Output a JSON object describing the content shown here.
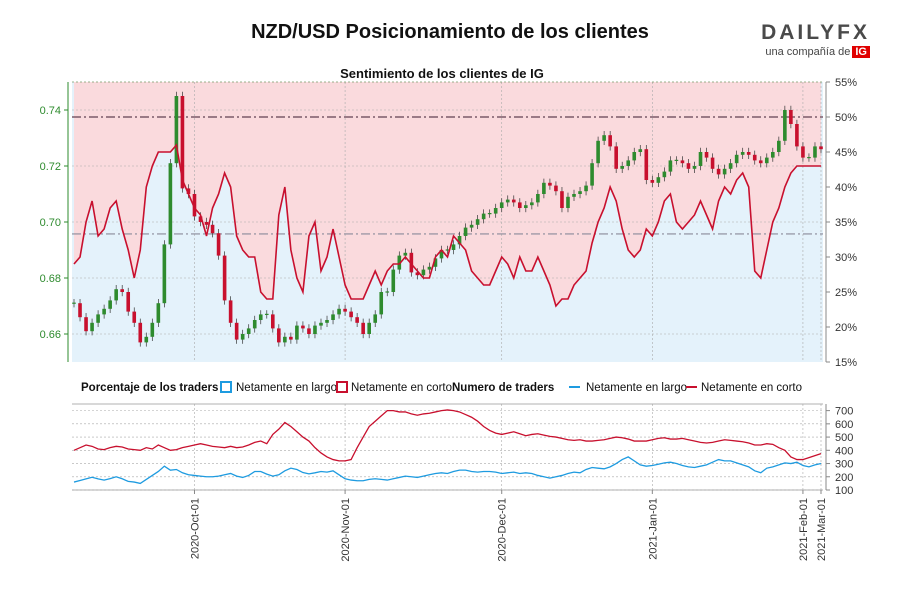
{
  "header": {
    "title": "NZD/USD Posicionamiento de los clientes",
    "logo_text": "DAILYFX",
    "logo_sub": "una compañía de",
    "logo_badge": "IG"
  },
  "colors": {
    "long": "#1e9be0",
    "short": "#c8102e",
    "candle_up": "#2e8b2e",
    "candle_down": "#c8102e",
    "shade_top": "#fadadd",
    "shade_bottom": "#e4f2fb",
    "axis_left": "#2e8b2e"
  },
  "chart_data": [
    {
      "type": "candlestick",
      "title": "Sentimiento de los clientes de IG",
      "y_left_range": [
        0.65,
        0.75
      ],
      "y_left_ticks": [
        "0.66",
        "0.68",
        "0.70",
        "0.72",
        "0.74"
      ],
      "y_right_range": [
        15,
        55
      ],
      "y_right_ticks": [
        "15%",
        "20%",
        "25%",
        "30%",
        "35%",
        "40%",
        "45%",
        "50%",
        "55%"
      ],
      "reference_lines_pct": [
        50,
        33.3
      ],
      "close": [
        0.671,
        0.666,
        0.661,
        0.664,
        0.667,
        0.669,
        0.672,
        0.676,
        0.675,
        0.668,
        0.664,
        0.657,
        0.659,
        0.664,
        0.671,
        0.692,
        0.721,
        0.745,
        0.712,
        0.71,
        0.702,
        0.7,
        0.699,
        0.696,
        0.688,
        0.672,
        0.664,
        0.658,
        0.66,
        0.662,
        0.665,
        0.667,
        0.667,
        0.662,
        0.657,
        0.659,
        0.658,
        0.663,
        0.662,
        0.66,
        0.663,
        0.664,
        0.665,
        0.667,
        0.669,
        0.668,
        0.666,
        0.664,
        0.66,
        0.664,
        0.667,
        0.675,
        0.675,
        0.683,
        0.688,
        0.689,
        0.682,
        0.681,
        0.683,
        0.684,
        0.687,
        0.69,
        0.69,
        0.692,
        0.695,
        0.698,
        0.699,
        0.701,
        0.703,
        0.703,
        0.705,
        0.707,
        0.708,
        0.707,
        0.705,
        0.706,
        0.707,
        0.71,
        0.714,
        0.713,
        0.711,
        0.705,
        0.709,
        0.71,
        0.711,
        0.713,
        0.721,
        0.729,
        0.731,
        0.727,
        0.719,
        0.72,
        0.722,
        0.725,
        0.726,
        0.715,
        0.714,
        0.716,
        0.718,
        0.722,
        0.722,
        0.721,
        0.719,
        0.72,
        0.725,
        0.723,
        0.719,
        0.717,
        0.719,
        0.721,
        0.724,
        0.725,
        0.724,
        0.722,
        0.721,
        0.723,
        0.725,
        0.729,
        0.74,
        0.735,
        0.727,
        0.723,
        0.723,
        0.727,
        0.726
      ],
      "short_pct": [
        29,
        30,
        35,
        38,
        33,
        34,
        37,
        38,
        34,
        31,
        27,
        31,
        40,
        43,
        45,
        45,
        45,
        46,
        41,
        39,
        37,
        36,
        33,
        37,
        39,
        42,
        40,
        33,
        31,
        30,
        30,
        25,
        24,
        24,
        36,
        40,
        31,
        27,
        25,
        33,
        35,
        28,
        30,
        34,
        30,
        26,
        24,
        24,
        24,
        26,
        28,
        26,
        28,
        29,
        29,
        30,
        29,
        28,
        27,
        27,
        30,
        31,
        30,
        33,
        32,
        31,
        28,
        27,
        26,
        26,
        28,
        30,
        29,
        27,
        30,
        28,
        28,
        30,
        28,
        26,
        23,
        24,
        24,
        26,
        27,
        28,
        32,
        35,
        37,
        40,
        38,
        34,
        31,
        30,
        31,
        34,
        33,
        35,
        38,
        39,
        35,
        34,
        35,
        36,
        38,
        36,
        34,
        38,
        40,
        39,
        41,
        42,
        40,
        28,
        27,
        31,
        35,
        37,
        40,
        42,
        43,
        43,
        43,
        43,
        43
      ],
      "long_pct": [
        71,
        70,
        65,
        62,
        67,
        66,
        63,
        62,
        66,
        69,
        73,
        69,
        60,
        57,
        55,
        55,
        55,
        54,
        59,
        61,
        63,
        64,
        67,
        63,
        61,
        58,
        60,
        67,
        69,
        70,
        70,
        75,
        76,
        76,
        64,
        60,
        69,
        73,
        75,
        67,
        65,
        72,
        70,
        66,
        70,
        74,
        76,
        76,
        76,
        74,
        72,
        74,
        72,
        71,
        71,
        70,
        71,
        72,
        73,
        73,
        70,
        69,
        70,
        67,
        68,
        69,
        72,
        73,
        74,
        74,
        72,
        70,
        71,
        73,
        70,
        72,
        72,
        70,
        72,
        74,
        77,
        76,
        76,
        74,
        73,
        72,
        68,
        65,
        63,
        60,
        62,
        66,
        69,
        70,
        69,
        66,
        67,
        65,
        62,
        61,
        65,
        66,
        65,
        64,
        62,
        64,
        66,
        62,
        60,
        61,
        59,
        58,
        60,
        72,
        73,
        69,
        65,
        63,
        60,
        58,
        57,
        57,
        57,
        57,
        57
      ]
    },
    {
      "type": "line",
      "y_range": [
        100,
        750
      ],
      "y_ticks": [
        "100",
        "200",
        "300",
        "400",
        "500",
        "600",
        "700"
      ],
      "x_ticks": [
        "2020-Oct-01",
        "2020-Nov-01",
        "2020-Dec-01",
        "2021-Jan-01",
        "2021-Feb-01",
        "2021-Mar-01"
      ],
      "series": [
        {
          "name": "Netamente en largo",
          "values": [
            160,
            172,
            184,
            196,
            184,
            175,
            186,
            200,
            185,
            165,
            160,
            150,
            180,
            210,
            240,
            280,
            250,
            255,
            230,
            215,
            210,
            205,
            200,
            200,
            205,
            215,
            225,
            205,
            195,
            210,
            240,
            240,
            220,
            205,
            215,
            245,
            265,
            255,
            232,
            222,
            230,
            240,
            235,
            245,
            215,
            185,
            175,
            170,
            170,
            180,
            185,
            180,
            175,
            185,
            195,
            205,
            200,
            195,
            205,
            215,
            225,
            230,
            225,
            240,
            250,
            250,
            240,
            235,
            240,
            240,
            235,
            225,
            230,
            235,
            225,
            230,
            225,
            210,
            200,
            190,
            200,
            210,
            225,
            235,
            230,
            255,
            270,
            265,
            260,
            275,
            300,
            330,
            350,
            320,
            290,
            280,
            285,
            295,
            305,
            310,
            300,
            285,
            275,
            270,
            280,
            290,
            310,
            330,
            320,
            320,
            305,
            290,
            275,
            245,
            230,
            265,
            275,
            290,
            305,
            300,
            310,
            285,
            275,
            290,
            300
          ]
        },
        {
          "name": "Netamente en corto",
          "values": [
            400,
            420,
            440,
            430,
            410,
            405,
            420,
            430,
            425,
            410,
            405,
            400,
            420,
            410,
            440,
            420,
            400,
            405,
            420,
            430,
            440,
            450,
            440,
            430,
            425,
            420,
            430,
            420,
            425,
            440,
            460,
            470,
            450,
            520,
            560,
            610,
            580,
            540,
            500,
            470,
            420,
            380,
            350,
            330,
            320,
            320,
            330,
            420,
            500,
            580,
            620,
            660,
            700,
            700,
            690,
            690,
            675,
            665,
            675,
            680,
            690,
            700,
            705,
            700,
            690,
            670,
            650,
            620,
            580,
            550,
            530,
            520,
            530,
            540,
            525,
            510,
            520,
            525,
            515,
            505,
            500,
            490,
            480,
            475,
            480,
            470,
            470,
            475,
            480,
            490,
            500,
            495,
            485,
            470,
            470,
            470,
            480,
            490,
            495,
            485,
            485,
            490,
            480,
            470,
            460,
            455,
            460,
            470,
            480,
            475,
            470,
            465,
            455,
            440,
            440,
            450,
            445,
            420,
            400,
            350,
            330,
            330,
            345,
            360,
            375
          ]
        }
      ]
    }
  ],
  "legend": {
    "pct_title": "Porcentaje de los traders",
    "pct_long": "Netamente en largo",
    "pct_short": "Netamente en corto",
    "num_title": "Numero de traders",
    "num_long": "Netamente en largo",
    "num_short": "Netamente en corto"
  }
}
